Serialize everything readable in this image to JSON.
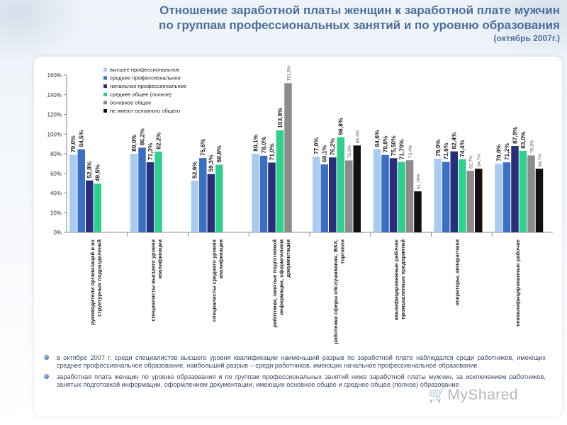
{
  "slide": {
    "title_line1": "Отношение заработной платы женщин к заработной плате мужчин",
    "title_line2": "по группам профессиональных занятий и по уровню образования",
    "title_line3": "(октябрь 2007г.)"
  },
  "chart_data": {
    "type": "bar",
    "ylim": [
      0,
      160
    ],
    "yticks": [
      "0%",
      "20%",
      "40%",
      "60%",
      "80%",
      "100%",
      "120%",
      "140%",
      "160%"
    ],
    "ytick_values": [
      0,
      20,
      40,
      60,
      80,
      100,
      120,
      140,
      160
    ],
    "grid": false,
    "legend_position": "top-left",
    "categories": [
      "руководители организаций и их структурных подразделений",
      "специалисты высшего уровня квалификации",
      "специалисты среднего уровня квалификации",
      "работники, занятые подготовкой информации, оформлением документации",
      "работники сферы обслуживания, ЖКХ, торговли",
      "квалифицированные рабочие промышленных предприятий",
      "операторы, аппаратчики",
      "неквалифицированные рабочие"
    ],
    "series": [
      {
        "name": "высшее профессиональное",
        "color": "#a9cbef",
        "values": [
          79.0,
          80.0,
          52.6,
          80.1,
          77.0,
          84.6,
          75.0,
          70.0
        ],
        "labels": [
          "79,0%",
          "80,0%",
          "52,6%",
          "80,1%",
          "77,0%",
          "84,6%",
          "75,0%",
          "70,0%"
        ]
      },
      {
        "name": "среднее профессиональное",
        "color": "#3b6fc4",
        "values": [
          84.5,
          86.2,
          75.6,
          78.0,
          69.1,
          78.8,
          71.6,
          71.2
        ],
        "labels": [
          "84,5%",
          "86,2%",
          "75,6%",
          "78,0%",
          "69,1%",
          "78,8%",
          "71,6%",
          "71,2%"
        ]
      },
      {
        "name": "начальное профессиональное",
        "color": "#2a2f7d",
        "values": [
          52.8,
          71.3,
          59.3,
          71.0,
          76.2,
          75.5,
          82.4,
          87.9
        ],
        "labels": [
          "52,8%",
          "71,3%",
          "59,3%",
          "71,0%",
          "76,2%",
          "75,50%",
          "82,4%",
          "87,9%"
        ]
      },
      {
        "name": "среднее общее (полное)",
        "color": "#2fcf8e",
        "values": [
          49.5,
          82.2,
          68.8,
          103.8,
          96.8,
          71.7,
          74.4,
          83.0
        ],
        "labels": [
          "49,5%",
          "82,2%",
          "68,8%",
          "103,8%",
          "96,8%",
          "71,70%",
          "74,4%",
          "83,0%"
        ]
      },
      {
        "name": "основное общее",
        "color": "#8c8c8c",
        "values": [
          null,
          null,
          null,
          151.8,
          73.2,
          73.4,
          62.7,
          78.3
        ],
        "labels": [
          "",
          "",
          "",
          "151,8%",
          "73,2%",
          "73,4%",
          "62,7%",
          "78,3%"
        ]
      },
      {
        "name": "не имеют основного общего",
        "color": "#111111",
        "values": [
          null,
          null,
          null,
          null,
          88.4,
          41.7,
          64.7,
          64.7
        ],
        "labels": [
          "",
          "",
          "",
          "",
          "88,4%",
          "41,70%",
          "64,7%",
          "64,7%"
        ]
      }
    ]
  },
  "notes": [
    "в октябре 2007 г. среди специалистов высшего уровня квалификации наименьший разрыв по заработной плате наблюдался среди работников, имеющих среднее профессиональное образование, наибольший разрыв – среди работников, имеющих начальное профессиональное образование",
    "заработная плата женщин по уровню образования и по группам профессиональных занятий ниже заработной платы мужчин, за исключением работников, занятых подготовкой информации, оформлением документации, имеющих основное общее и среднее общее (полное) образование"
  ],
  "watermark": {
    "text": "MyShared",
    "icon": "shopping-cart-icon"
  }
}
